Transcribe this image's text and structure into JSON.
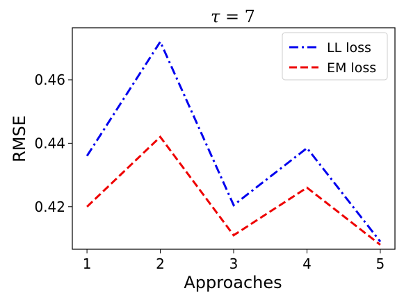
{
  "chart_data": {
    "type": "line",
    "title_var": "τ",
    "title_rest": " = 7",
    "xlabel": "Approaches",
    "ylabel": "RMSE",
    "x": [
      1,
      2,
      3,
      4,
      5
    ],
    "xticks": [
      "1",
      "2",
      "3",
      "4",
      "5"
    ],
    "yticks": [
      0.42,
      0.44,
      0.46
    ],
    "ytick_labels": [
      "0.42",
      "0.44",
      "0.46"
    ],
    "xlim": [
      0.8,
      5.2
    ],
    "ylim": [
      0.4066,
      0.4764
    ],
    "grid": false,
    "legend_position": "top-right",
    "series": [
      {
        "name": "LL loss",
        "values": [
          0.436,
          0.472,
          0.4205,
          0.4385,
          0.409
        ],
        "color": "#0000ee",
        "dash": "dashdot"
      },
      {
        "name": "EM loss",
        "values": [
          0.42,
          0.442,
          0.411,
          0.426,
          0.408
        ],
        "color": "#ee0000",
        "dash": "dashed"
      }
    ]
  }
}
